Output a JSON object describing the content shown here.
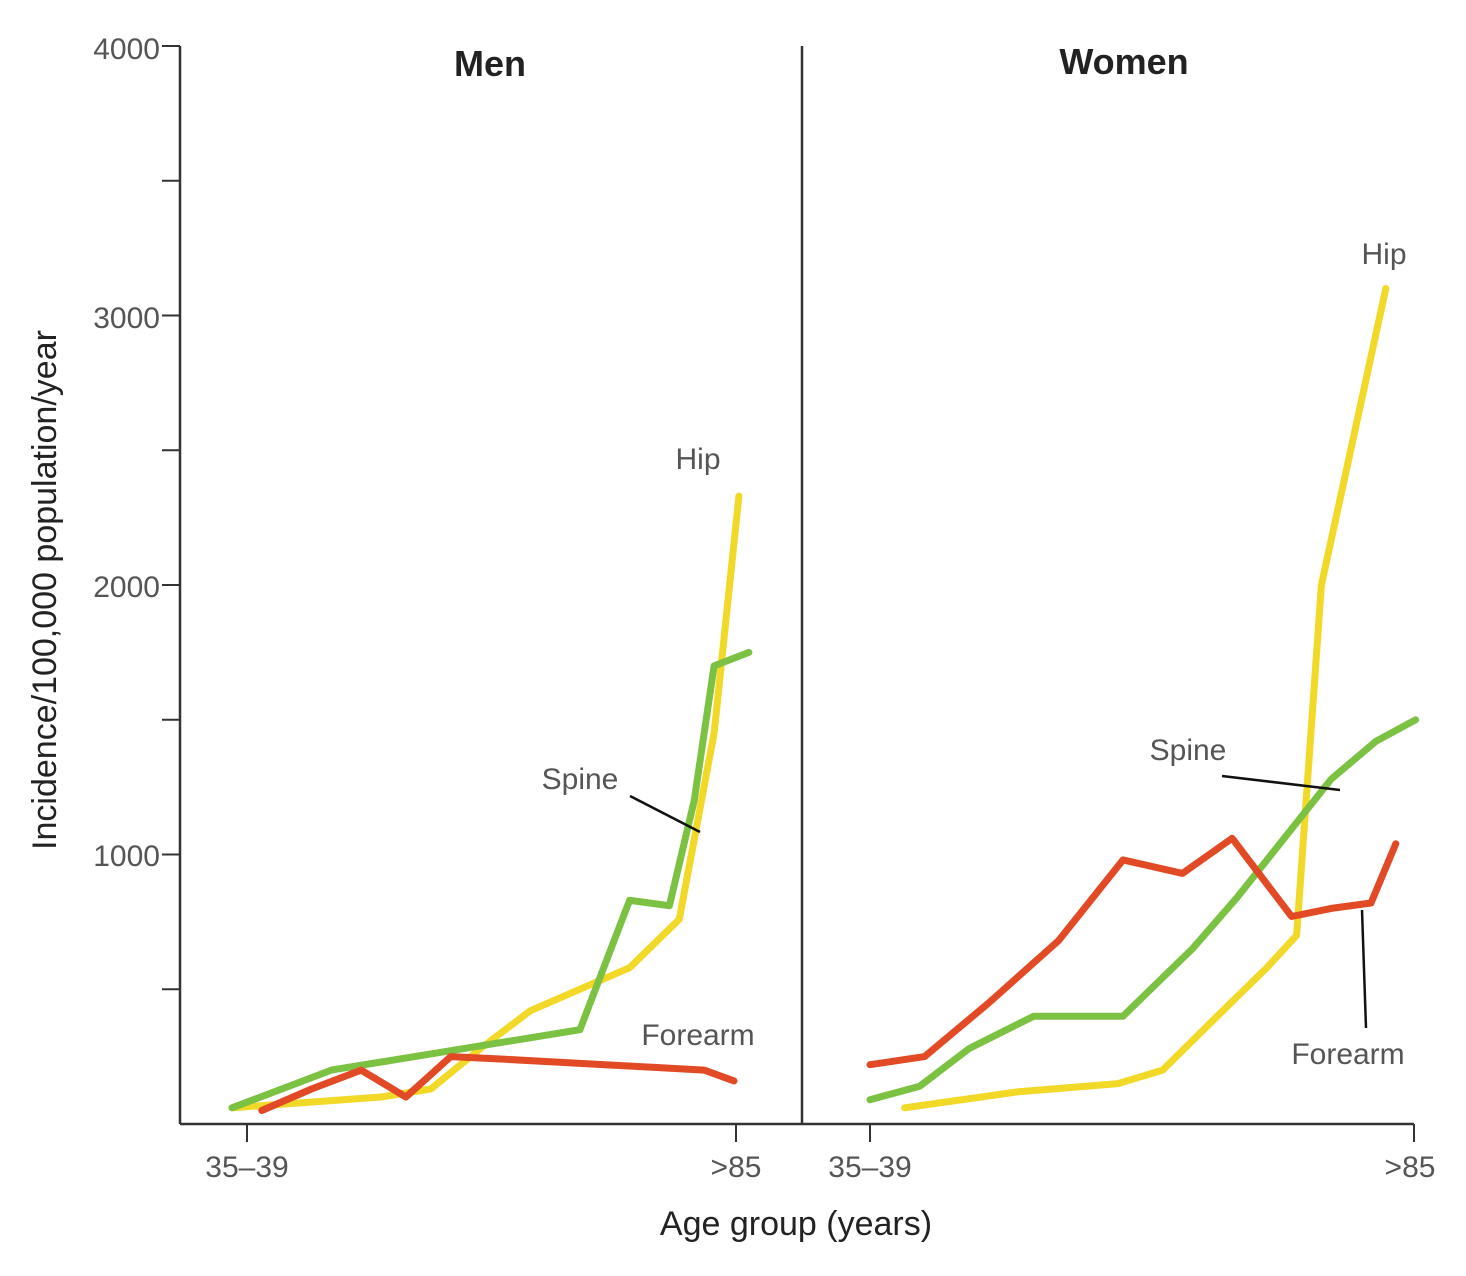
{
  "chart_data": {
    "type": "line",
    "ylabel": "Incidence/100,000 population/year",
    "xlabel": "Age group (years)",
    "ylim": [
      0,
      4000
    ],
    "yticks": [
      1000,
      2000,
      3000,
      4000
    ],
    "colors": {
      "Hip": "#f2d927",
      "Spine": "#7cc242",
      "Forearm": "#e24a26"
    },
    "panels": [
      {
        "title": "Men",
        "x_tick_labels": [
          "35–39",
          ">85"
        ],
        "series": [
          {
            "name": "Hip",
            "x": [
              0,
              3,
              4,
              5,
              6,
              8,
              9,
              9.7,
              10.2
            ],
            "values": [
              60,
              100,
              130,
              280,
              420,
              580,
              760,
              1450,
              2330
            ]
          },
          {
            "name": "Spine",
            "x": [
              0,
              1,
              2,
              3,
              4,
              5,
              6,
              7,
              8,
              8.8,
              9.3,
              9.7,
              10.4
            ],
            "values": [
              60,
              130,
              200,
              230,
              260,
              290,
              320,
              350,
              830,
              810,
              1200,
              1700,
              1750
            ]
          },
          {
            "name": "Forearm",
            "x": [
              0.6,
              1.6,
              2.6,
              3.5,
              4.4,
              5.5,
              6.5,
              7.5,
              8.5,
              9.5,
              10.1
            ],
            "values": [
              50,
              130,
              200,
              100,
              250,
              240,
              230,
              220,
              210,
              200,
              160
            ]
          }
        ],
        "labels": [
          "Hip",
          "Spine",
          "Forearm"
        ]
      },
      {
        "title": "Women",
        "x_tick_labels": [
          "35–39",
          ">85"
        ],
        "series": [
          {
            "name": "Hip",
            "x": [
              0.7,
              3,
              5,
              5.9,
              7,
              8,
              8.6,
              9.1,
              10.4
            ],
            "values": [
              60,
              120,
              150,
              200,
              400,
              580,
              700,
              2000,
              3100
            ]
          },
          {
            "name": "Spine",
            "x": [
              0,
              1,
              2,
              3.3,
              5.1,
              6.5,
              7.4,
              9.3,
              10.2,
              11
            ],
            "values": [
              90,
              140,
              280,
              400,
              400,
              650,
              840,
              1280,
              1420,
              1500
            ]
          },
          {
            "name": "Forearm",
            "x": [
              0,
              1.1,
              2.4,
              3.8,
              5.1,
              6.3,
              7.3,
              8.5,
              9.3,
              10.1,
              10.6
            ],
            "values": [
              220,
              250,
              450,
              680,
              980,
              930,
              1060,
              770,
              800,
              820,
              1040
            ]
          }
        ],
        "labels": [
          "Hip",
          "Spine",
          "Forearm"
        ]
      }
    ]
  }
}
